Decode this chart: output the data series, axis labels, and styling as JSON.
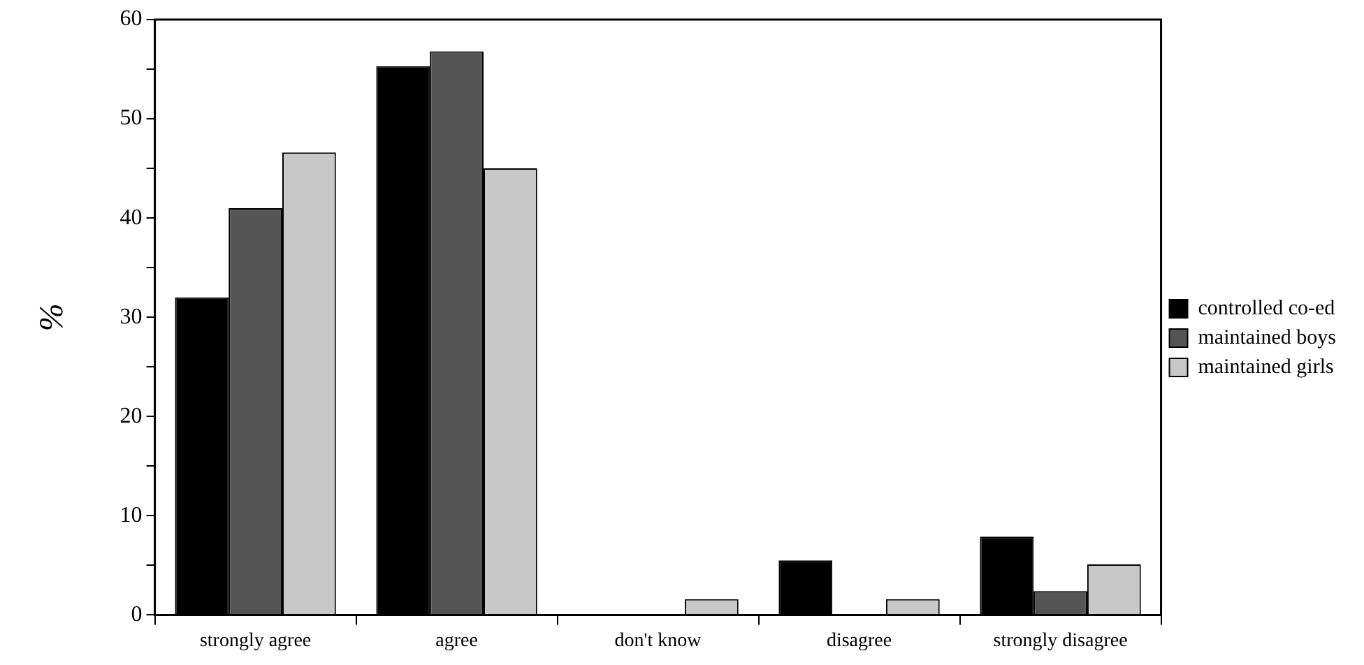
{
  "chart_data": {
    "type": "bar",
    "ylabel": "%",
    "categories": [
      "strongly agree",
      "agree",
      "don't know",
      "disagree",
      "strongly disagree"
    ],
    "series": [
      {
        "name": "controlled co-ed",
        "color": "#000000",
        "values": [
          32,
          55.3,
          0,
          5.5,
          7.9
        ]
      },
      {
        "name": "maintained boys",
        "color": "#555555",
        "values": [
          41,
          56.8,
          0,
          0,
          2.4
        ]
      },
      {
        "name": "maintained girls",
        "color": "#c8c8c8",
        "values": [
          46.6,
          45,
          1.6,
          1.6,
          5.1
        ]
      }
    ],
    "ylim": [
      0,
      60
    ],
    "yticks": [
      0,
      {
        "value": 5,
        "label": null
      },
      10,
      {
        "value": 15,
        "label": null
      },
      20,
      {
        "value": 25,
        "label": null
      },
      30,
      {
        "value": 35,
        "label": null
      },
      40,
      {
        "value": 45,
        "label": null
      },
      50,
      {
        "value": 55,
        "label": null
      },
      60
    ],
    "grid": false,
    "legend": "right"
  }
}
